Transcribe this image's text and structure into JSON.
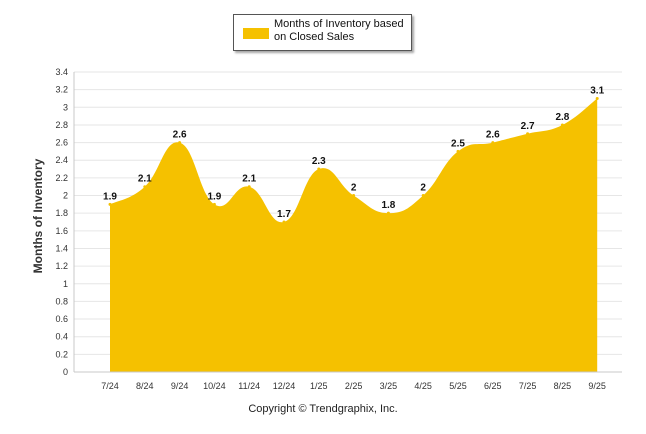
{
  "chart_data": {
    "type": "area",
    "title": "",
    "xlabel": "",
    "ylabel": "Months of Inventory",
    "categories": [
      "7/24",
      "8/24",
      "9/24",
      "10/24",
      "11/24",
      "12/24",
      "1/25",
      "2/25",
      "3/25",
      "4/25",
      "5/25",
      "6/25",
      "7/25",
      "8/25",
      "9/25"
    ],
    "series": [
      {
        "name": "Months of Inventory based on Closed Sales",
        "values": [
          1.9,
          2.1,
          2.6,
          1.9,
          2.1,
          1.7,
          2.3,
          2,
          1.8,
          2,
          2.5,
          2.6,
          2.7,
          2.8,
          3.1
        ],
        "color": "#F5C100"
      }
    ],
    "ylim": [
      0,
      3.4
    ],
    "yticks": [
      "0",
      "0.2",
      "0.4",
      "0.6",
      "0.8",
      "1",
      "1.2",
      "1.4",
      "1.6",
      "1.8",
      "2",
      "2.2",
      "2.4",
      "2.6",
      "2.8",
      "3",
      "3.2",
      "3.4"
    ],
    "grid": true,
    "legend_position": "top-center"
  },
  "legend": {
    "label_line1": "Months of Inventory based",
    "label_line2": "on Closed Sales"
  },
  "footer": {
    "copyright": "Copyright © Trendgraphix, Inc."
  },
  "colors": {
    "fill": "#F5C100",
    "grid": "#E6E6E6",
    "axis": "#C8C8C8"
  }
}
